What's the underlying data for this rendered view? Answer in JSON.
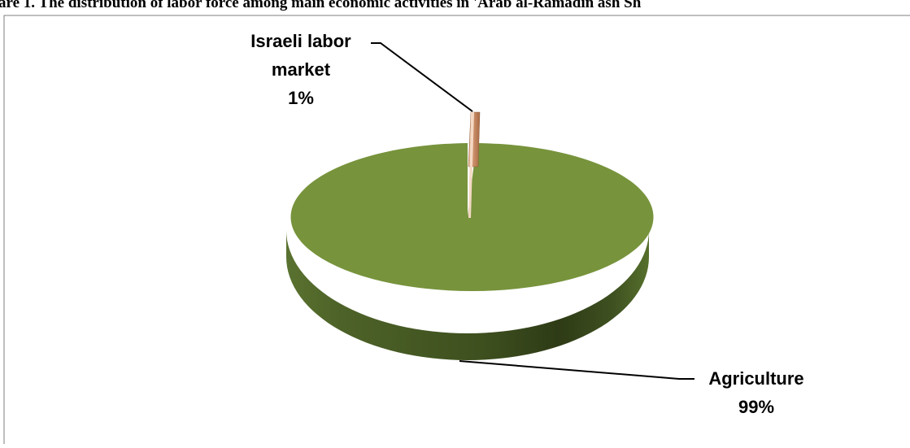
{
  "chart_data": {
    "type": "pie",
    "title": "are 1. The distribution of labor force among main economic activities in 'Arab al-Ramadin ash Sh",
    "slices": [
      {
        "label_lines": [
          "Israeli labor",
          "market"
        ],
        "percent_label": "1%",
        "value": 1,
        "color": "#c8845c"
      },
      {
        "label_lines": [
          "Agriculture"
        ],
        "percent_label": "99%",
        "value": 99,
        "color": "#77933c"
      }
    ]
  }
}
